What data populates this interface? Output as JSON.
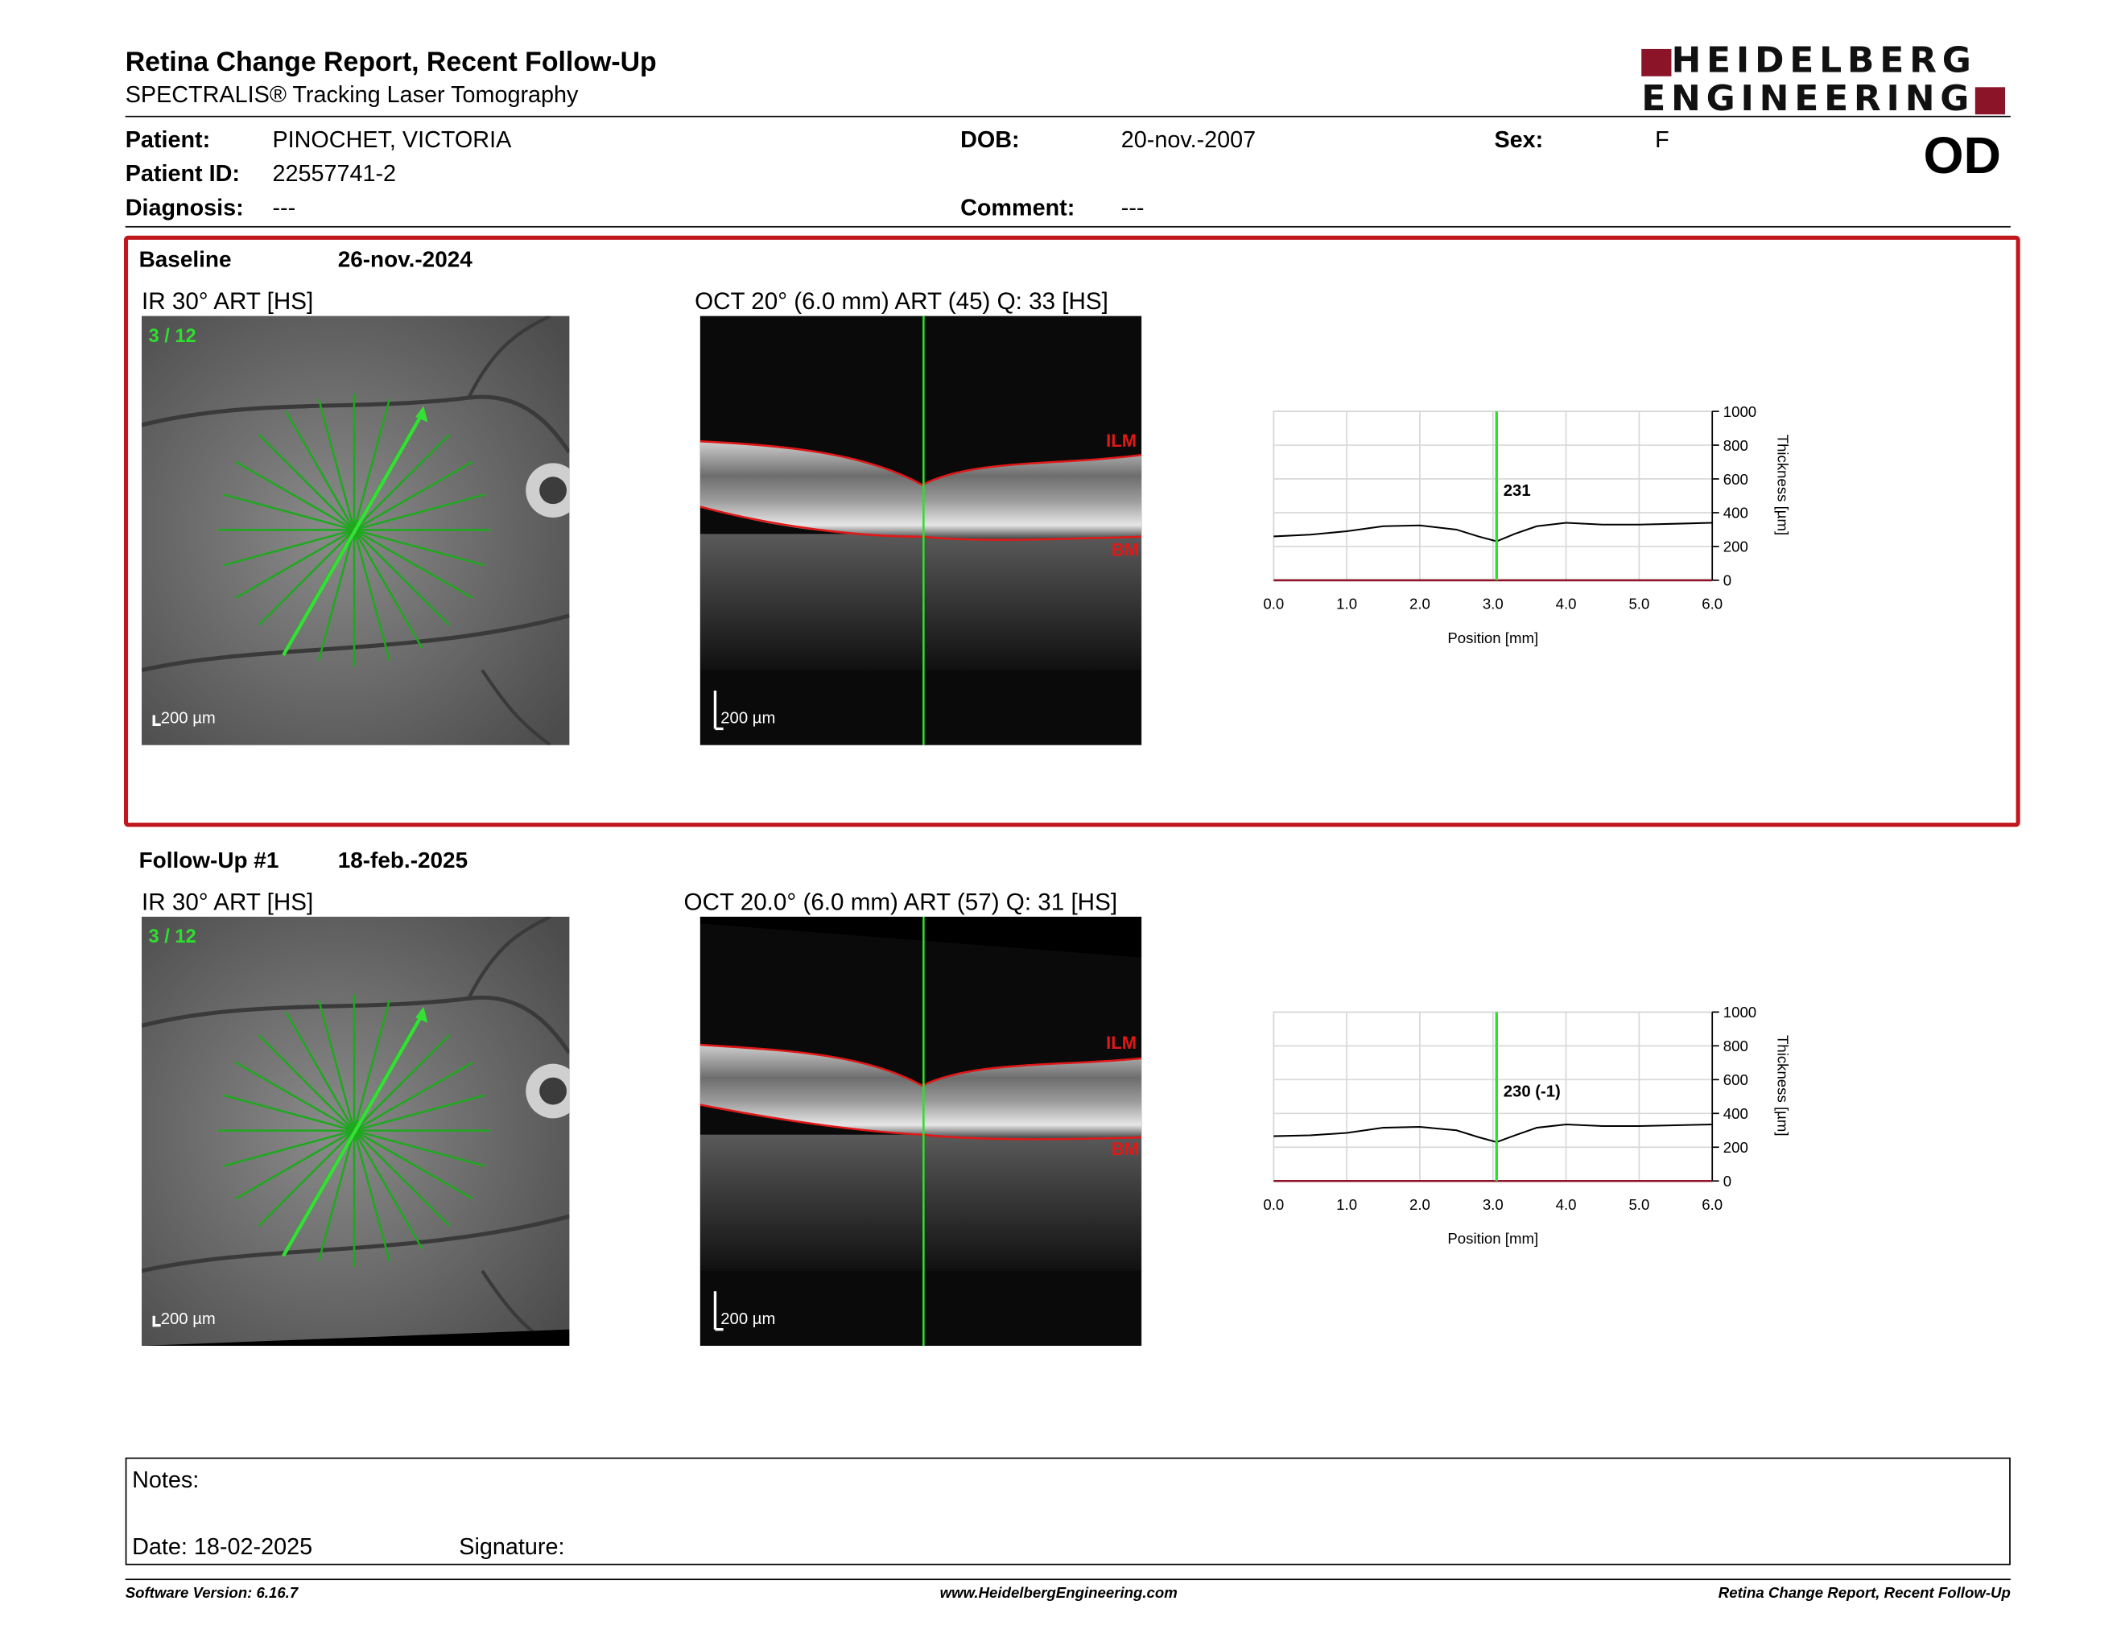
{
  "header": {
    "title": "Retina Change Report, Recent Follow-Up",
    "subtitle": "SPECTRALIS® Tracking Laser Tomography",
    "logo_line1": "HEIDELBERG",
    "logo_line2": "ENGINEERING",
    "eye": "OD"
  },
  "patient": {
    "patient_label": "Patient:",
    "patient_value": "PINOCHET, VICTORIA",
    "dob_label": "DOB:",
    "dob_value": "20-nov.-2007",
    "sex_label": "Sex:",
    "sex_value": "F",
    "id_label": "Patient ID:",
    "id_value": "22557741-2",
    "diagnosis_label": "Diagnosis:",
    "diagnosis_value": "---",
    "comment_label": "Comment:",
    "comment_value": "---"
  },
  "baseline": {
    "label": "Baseline",
    "date": "26-nov.-2024",
    "ir_label": "IR 30° ART [HS]",
    "scan_index": "3 / 12",
    "oct_label": "OCT 20° (6.0 mm) ART (45) Q: 33 [HS]",
    "scale_label": "200 µm",
    "ilm": "ILM",
    "bm": "BM"
  },
  "followup": {
    "label": "Follow-Up #1",
    "date": "18-feb.-2025",
    "ir_label": "IR 30° ART [HS]",
    "scan_index": "3 / 12",
    "oct_label": "OCT 20.0° (6.0 mm) ART (57) Q: 31 [HS]",
    "scale_label": "200 µm",
    "ilm": "ILM",
    "bm": "BM"
  },
  "chart_data": [
    {
      "type": "line",
      "title": "",
      "xlabel": "Position [mm]",
      "ylabel": "Thickness [µm]",
      "xlim": [
        0,
        6
      ],
      "ylim": [
        0,
        1000
      ],
      "x_ticks": [
        "0.0",
        "1.0",
        "2.0",
        "3.0",
        "4.0",
        "5.0",
        "6.0"
      ],
      "y_ticks": [
        "0",
        "200",
        "400",
        "600",
        "800",
        "1000"
      ],
      "grid": true,
      "cursor_x": 3.05,
      "cursor_label": "231",
      "series": [
        {
          "x": [
            0,
            0.5,
            1.0,
            1.5,
            2.0,
            2.5,
            2.8,
            3.05,
            3.3,
            3.6,
            4.0,
            4.5,
            5.0,
            5.5,
            6.0
          ],
          "values": [
            260,
            270,
            290,
            320,
            325,
            300,
            260,
            231,
            275,
            320,
            340,
            330,
            330,
            335,
            340
          ]
        }
      ]
    },
    {
      "type": "line",
      "title": "",
      "xlabel": "Position [mm]",
      "ylabel": "Thickness [µm]",
      "xlim": [
        0,
        6
      ],
      "ylim": [
        0,
        1000
      ],
      "x_ticks": [
        "0.0",
        "1.0",
        "2.0",
        "3.0",
        "4.0",
        "5.0",
        "6.0"
      ],
      "y_ticks": [
        "0",
        "200",
        "400",
        "600",
        "800",
        "1000"
      ],
      "grid": true,
      "cursor_x": 3.05,
      "cursor_label": "230 (-1)",
      "series": [
        {
          "x": [
            0,
            0.5,
            1.0,
            1.5,
            2.0,
            2.5,
            2.8,
            3.05,
            3.3,
            3.6,
            4.0,
            4.5,
            5.0,
            5.5,
            6.0
          ],
          "values": [
            265,
            270,
            285,
            315,
            320,
            300,
            260,
            230,
            270,
            315,
            335,
            325,
            325,
            330,
            335
          ]
        }
      ]
    }
  ],
  "notes": {
    "notes_label": "Notes:",
    "date_label": "Date: 18-02-2025",
    "signature_label": "Signature:"
  },
  "footer": {
    "left": "Software Version: 6.16.7",
    "center": "www.HeidelbergEngineering.com",
    "right": "Retina Change Report, Recent Follow-Up"
  },
  "colors": {
    "frame_red": "#c0161c",
    "brand": "#8c1428",
    "scan_green": "#22c022",
    "segmentation_red": "#e01818"
  }
}
